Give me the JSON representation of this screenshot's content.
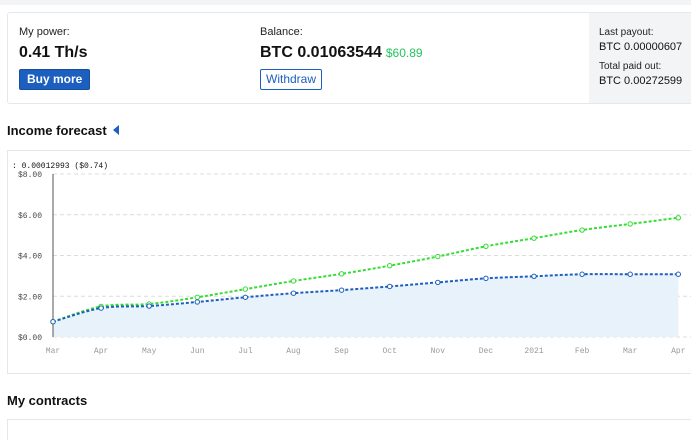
{
  "stats": {
    "power_label": "My power:",
    "power_value": "0.41 Th/s",
    "buy_more_label": "Buy more",
    "balance_label": "Balance:",
    "balance_btc": "BTC 0.01063544",
    "balance_usd": "$60.89",
    "withdraw_label": "Withdraw"
  },
  "payout": {
    "last_payout_label": "Last payout:",
    "last_payout_value": "BTC 0.00000607",
    "total_paid_label": "Total paid out:",
    "total_paid_value": "BTC 0.00272599"
  },
  "forecast": {
    "title": "Income forecast"
  },
  "contracts": {
    "title": "My contracts"
  },
  "chart_data": {
    "type": "line",
    "tooltip": ": 0.00012993 ($0.74)",
    "categories": [
      "Mar",
      "Apr",
      "May",
      "Jun",
      "Jul",
      "Aug",
      "Sep",
      "Oct",
      "Nov",
      "Dec",
      "2021",
      "Feb",
      "Mar",
      "Apr"
    ],
    "y_ticks": [
      "$0.00",
      "$2.00",
      "$4.00",
      "$6.00",
      "$8.00"
    ],
    "ylim": [
      0,
      8
    ],
    "grid": true,
    "series": [
      {
        "color": "#33dd33",
        "values": [
          0.75,
          1.5,
          1.62,
          1.95,
          2.35,
          2.75,
          3.1,
          3.5,
          3.95,
          4.45,
          4.85,
          5.25,
          5.55,
          5.85
        ]
      },
      {
        "color": "#1d5fbf",
        "fill": "#e8f2fa",
        "values": [
          0.75,
          1.42,
          1.52,
          1.72,
          1.95,
          2.15,
          2.3,
          2.48,
          2.68,
          2.88,
          2.98,
          3.08,
          3.08,
          3.08
        ]
      }
    ]
  }
}
